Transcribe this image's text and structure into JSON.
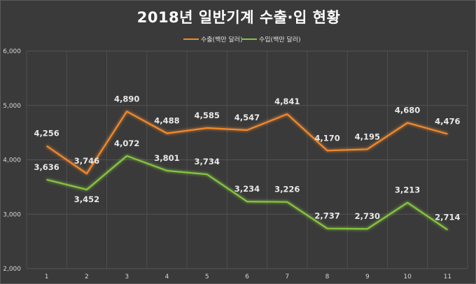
{
  "chart_data": {
    "type": "line",
    "title": "2018년 일반기계 수출·입 현황",
    "categories": [
      "1",
      "2",
      "3",
      "4",
      "5",
      "6",
      "7",
      "8",
      "9",
      "10",
      "11"
    ],
    "ylim": [
      2000,
      6000
    ],
    "yticks": [
      "2,000",
      "3,000",
      "4,000",
      "5,000",
      "6,000"
    ],
    "grid": true,
    "legend_position": "top",
    "series": [
      {
        "name": "수출(백만 달러)",
        "color": "#f0892e",
        "values": [
          4256,
          3746,
          4890,
          4488,
          4585,
          4547,
          4841,
          4170,
          4195,
          4680,
          4476
        ],
        "labels": [
          "4,256",
          "3,746",
          "4,890",
          "4,488",
          "4,585",
          "4,547",
          "4,841",
          "4,170",
          "4,195",
          "4,680",
          "4,476"
        ]
      },
      {
        "name": "수입(백만 달러)",
        "color": "#86c440",
        "values": [
          3636,
          3452,
          4072,
          3801,
          3734,
          3234,
          3226,
          2737,
          2730,
          3213,
          2714
        ],
        "labels": [
          "3,636",
          "3,452",
          "4,072",
          "3,801",
          "3,734",
          "3,234",
          "3,226",
          "2,737",
          "2,730",
          "3,213",
          "2,714"
        ]
      }
    ]
  }
}
